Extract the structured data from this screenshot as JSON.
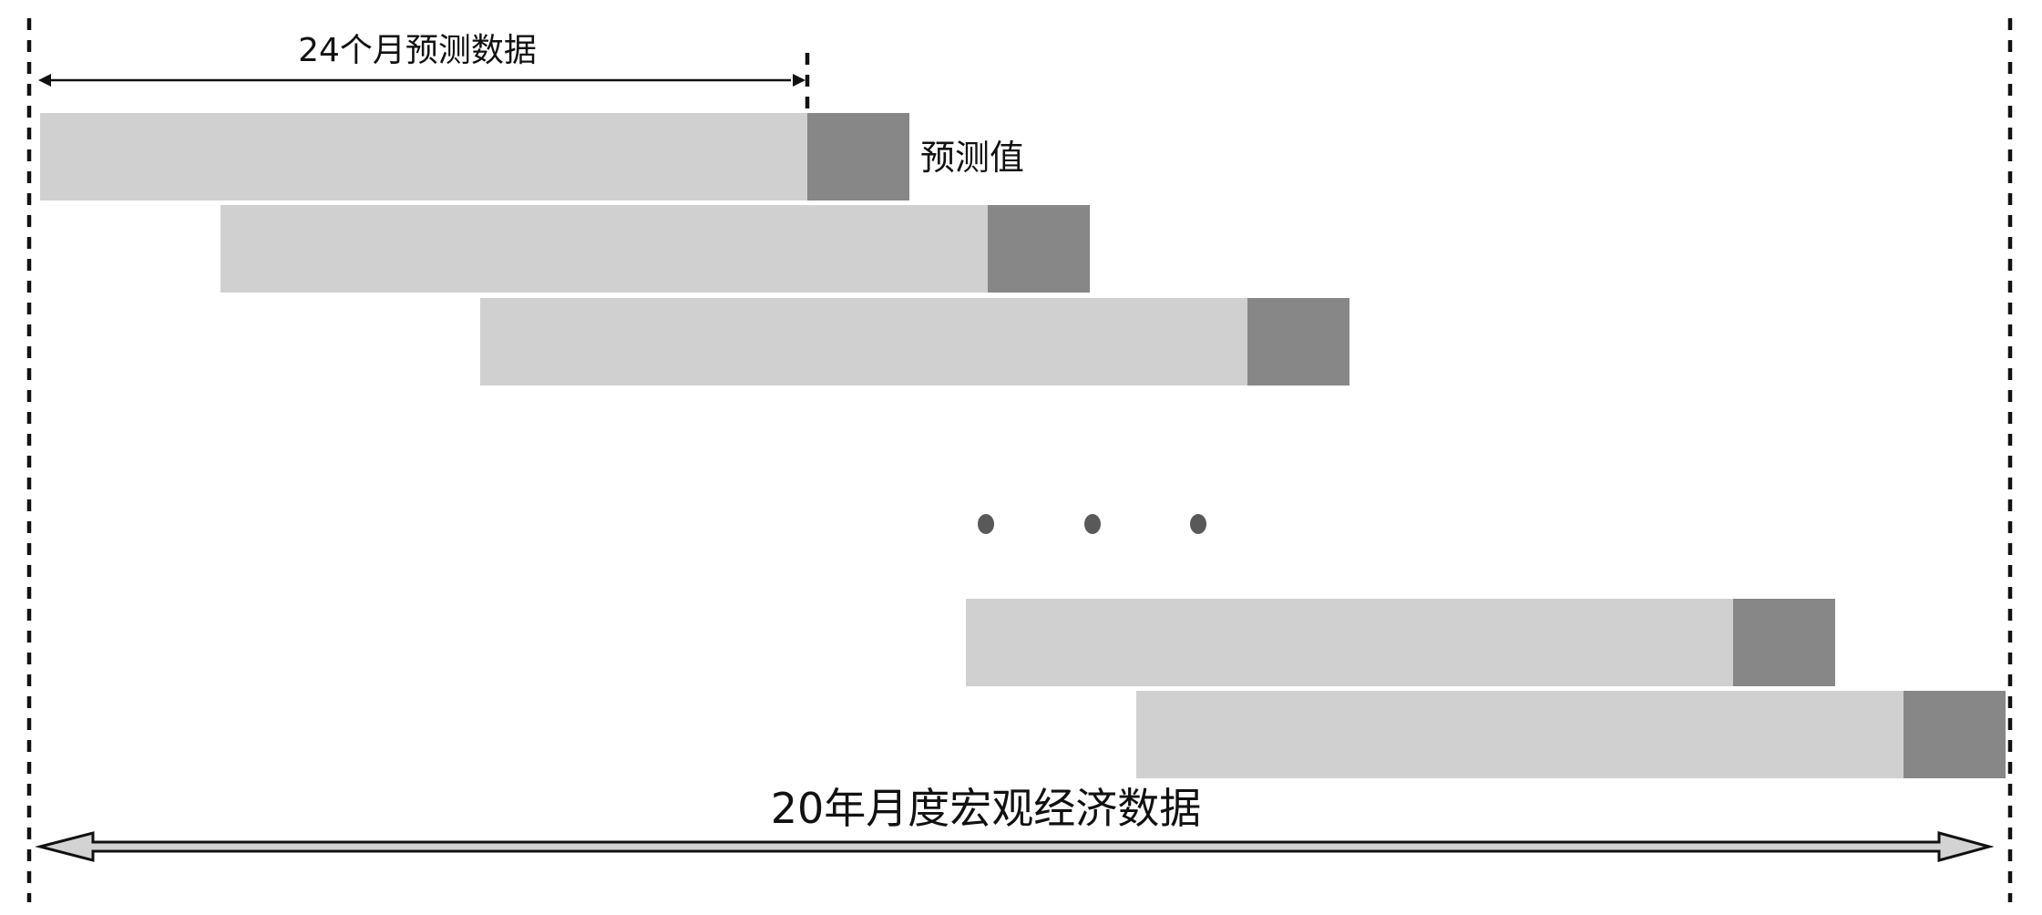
{
  "diagram": {
    "window_label": "24个月预测数据",
    "prediction_label": "预测值",
    "span_label": "20年月度宏观经济数据",
    "ellipsis_count": 3,
    "windows_shown": 5,
    "colors": {
      "window": "#d0d0d0",
      "prediction": "#878787",
      "ellipsis": "#595959",
      "span_arrow_fill": "#d3d3d3",
      "line": "#111111"
    }
  }
}
